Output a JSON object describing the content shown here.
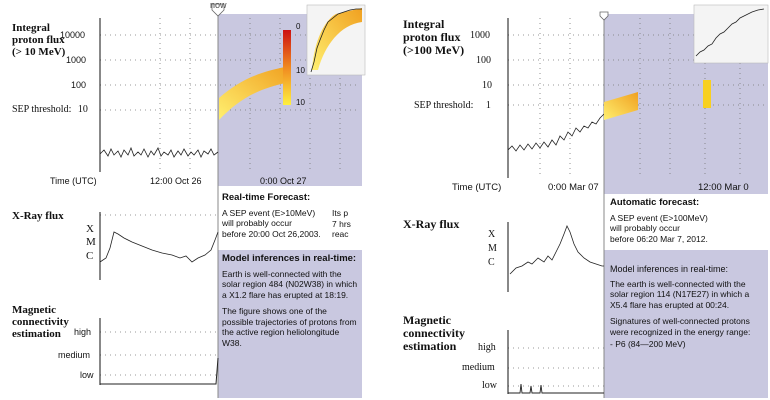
{
  "left": {
    "now_label": "now",
    "proton": {
      "title_lines": [
        "Integral",
        "proton flux",
        "(> 10 MeV)"
      ],
      "yticks": [
        "10000",
        "1000",
        "100",
        "10"
      ],
      "threshold_label": "SEP threshold:",
      "time_label": "Time (UTC)",
      "xticks": [
        "12:00 Oct 26",
        "0:00  Oct 27"
      ],
      "colorbar_ticks": [
        "0",
        "10",
        "10"
      ]
    },
    "xray": {
      "title": "X-Ray flux",
      "levels": [
        "X",
        "M",
        "C"
      ]
    },
    "magnetic": {
      "title_lines": [
        "Magnetic",
        "connectivity",
        "estimation"
      ],
      "levels": [
        "high",
        "medium",
        "low"
      ]
    },
    "forecast": {
      "title": "Real-time Forecast:",
      "lines": [
        "A SEP event (E>10MeV)",
        "will probably occur",
        "before 20:00 Oct 26,2003."
      ],
      "overflow_lines": [
        "Its p",
        "7 hrs",
        "reac"
      ]
    },
    "inferences": {
      "title": "Model inferences in real-time:",
      "p1": "Earth is well-connected with the solar region 484 (N02W38) in which a X1.2 flare has erupted at 18:19.",
      "p2": "The figure shows one of the possible trajectories of protons from the active region heliolongitude W38."
    }
  },
  "right": {
    "proton": {
      "title_lines": [
        "Integral",
        "proton flux",
        "(>100 MeV)"
      ],
      "yticks": [
        "1000",
        "100",
        "10"
      ],
      "threshold_label": "SEP threshold:",
      "threshold_value": "1",
      "time_label": "Time (UTC)",
      "xticks": [
        "0:00   Mar 07",
        "12:00 Mar 0"
      ]
    },
    "xray": {
      "title": "X-Ray flux",
      "levels": [
        "X",
        "M",
        "C"
      ]
    },
    "magnetic": {
      "title_lines": [
        "Magnetic",
        "connectivity",
        "estimation"
      ],
      "levels": [
        "high",
        "medium",
        "low"
      ]
    },
    "forecast": {
      "title": "Automatic forecast:",
      "lines": [
        "A SEP event (E>100MeV)",
        "will probably occur",
        "before 06:20 Mar 7, 2012."
      ]
    },
    "inferences": {
      "title": "Model inferences in real-time:",
      "p1": "The earth is well-connected with the solar region 114 (N17E27) in which a X5.4 flare has erupted at 00:24.",
      "p2": "Signatures of well-connected protons were recognized in the energy range:",
      "p3": "- P6 (84—200 MeV)"
    }
  },
  "colors": {
    "now_shade": "#c9c8e0",
    "curve": "#222222",
    "forecast_band": "#f7c830"
  },
  "chart_data": [
    {
      "type": "line",
      "panel": "left-proton-flux",
      "title": "Integral proton flux (> 10 MeV)",
      "xlabel": "Time (UTC)",
      "ylabel": "",
      "yscale": "log",
      "ylim": [
        1,
        10000
      ],
      "x_ticks": [
        "12:00 Oct 26",
        "0:00 Oct 27"
      ],
      "threshold": 10,
      "series": [
        {
          "values": [
            0.4,
            0.5,
            0.35,
            0.45,
            0.4,
            0.5,
            0.45,
            0.4,
            0.5,
            0.45,
            0.4,
            0.45
          ]
        }
      ]
    },
    {
      "type": "line",
      "panel": "left-xray-flux",
      "title": "X-Ray flux",
      "levels": [
        "X",
        "M",
        "C"
      ]
    },
    {
      "type": "line",
      "panel": "left-magnetic-connectivity",
      "title": "Magnetic connectivity estimation",
      "levels": [
        "high",
        "medium",
        "low"
      ]
    },
    {
      "type": "line",
      "panel": "right-proton-flux",
      "title": "Integral proton flux (>100 MeV)",
      "xlabel": "Time (UTC)",
      "ylabel": "",
      "yscale": "log",
      "ylim": [
        0.1,
        1000
      ],
      "x_ticks": [
        "0:00 Mar 07",
        "12:00 Mar 0"
      ],
      "threshold": 1
    },
    {
      "type": "line",
      "panel": "right-xray-flux",
      "title": "X-Ray flux",
      "levels": [
        "X",
        "M",
        "C"
      ]
    },
    {
      "type": "line",
      "panel": "right-magnetic-connectivity",
      "title": "Magnetic connectivity estimation",
      "levels": [
        "high",
        "medium",
        "low"
      ]
    }
  ]
}
